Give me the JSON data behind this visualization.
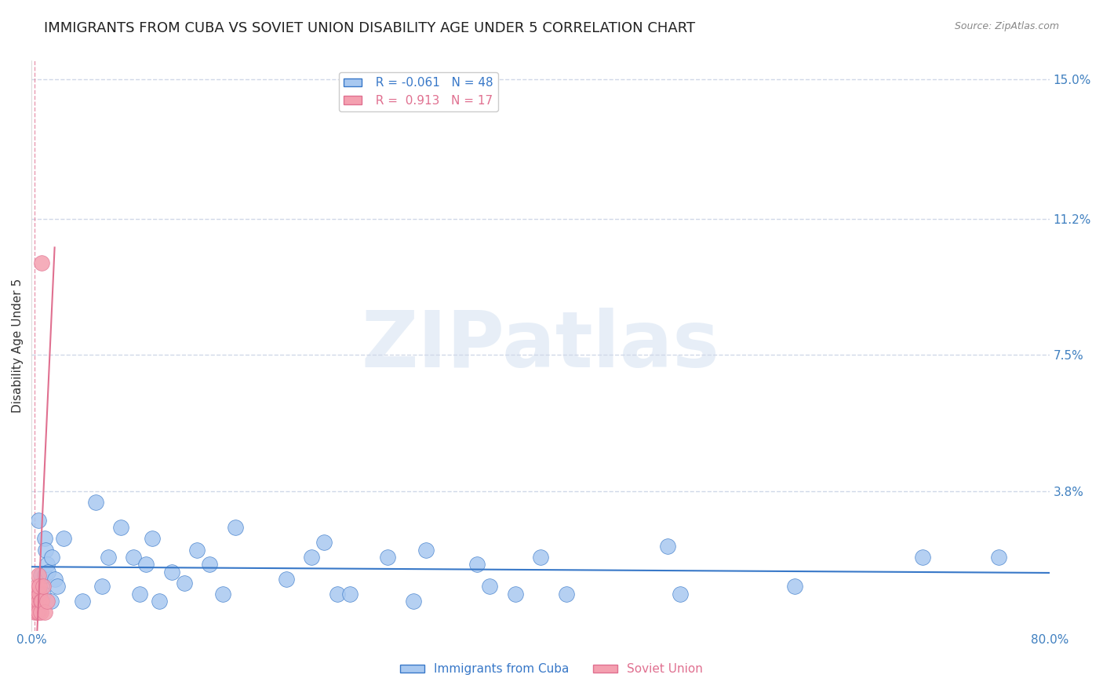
{
  "title": "IMMIGRANTS FROM CUBA VS SOVIET UNION DISABILITY AGE UNDER 5 CORRELATION CHART",
  "source": "Source: ZipAtlas.com",
  "xlabel": "",
  "ylabel": "Disability Age Under 5",
  "xlim": [
    0.0,
    0.8
  ],
  "ylim": [
    0.0,
    0.155
  ],
  "yticks": [
    0.038,
    0.075,
    0.112,
    0.15
  ],
  "ytick_labels": [
    "3.8%",
    "7.5%",
    "11.2%",
    "15.0%"
  ],
  "cuba_R": -0.061,
  "cuba_N": 48,
  "soviet_R": 0.913,
  "soviet_N": 17,
  "cuba_color": "#a8c8f0",
  "soviet_color": "#f4a0b0",
  "line_cuba_color": "#3878c8",
  "line_soviet_color": "#e07090",
  "background_color": "#ffffff",
  "watermark": "ZIPatlas",
  "watermark_color": "#d0dff0",
  "cuba_x": [
    0.005,
    0.007,
    0.008,
    0.009,
    0.01,
    0.01,
    0.011,
    0.012,
    0.013,
    0.015,
    0.016,
    0.018,
    0.02,
    0.025,
    0.04,
    0.05,
    0.055,
    0.06,
    0.07,
    0.08,
    0.085,
    0.09,
    0.095,
    0.1,
    0.11,
    0.12,
    0.13,
    0.14,
    0.15,
    0.16,
    0.2,
    0.22,
    0.23,
    0.24,
    0.25,
    0.28,
    0.3,
    0.31,
    0.35,
    0.36,
    0.38,
    0.4,
    0.42,
    0.5,
    0.51,
    0.6,
    0.7,
    0.76
  ],
  "cuba_y": [
    0.03,
    0.015,
    0.012,
    0.01,
    0.015,
    0.025,
    0.022,
    0.018,
    0.016,
    0.008,
    0.02,
    0.014,
    0.012,
    0.025,
    0.008,
    0.035,
    0.012,
    0.02,
    0.028,
    0.02,
    0.01,
    0.018,
    0.025,
    0.008,
    0.016,
    0.013,
    0.022,
    0.018,
    0.01,
    0.028,
    0.014,
    0.02,
    0.024,
    0.01,
    0.01,
    0.02,
    0.008,
    0.022,
    0.018,
    0.012,
    0.01,
    0.02,
    0.01,
    0.023,
    0.01,
    0.012,
    0.02,
    0.02
  ],
  "soviet_x": [
    0.002,
    0.003,
    0.003,
    0.004,
    0.004,
    0.005,
    0.005,
    0.005,
    0.006,
    0.006,
    0.007,
    0.007,
    0.008,
    0.008,
    0.009,
    0.01,
    0.012
  ],
  "soviet_y": [
    0.005,
    0.008,
    0.01,
    0.012,
    0.005,
    0.015,
    0.008,
    0.005,
    0.01,
    0.012,
    0.008,
    0.005,
    0.008,
    0.1,
    0.012,
    0.005,
    0.008
  ],
  "grid_color": "#d0d8e8",
  "title_fontsize": 13,
  "label_fontsize": 11,
  "tick_fontsize": 11
}
